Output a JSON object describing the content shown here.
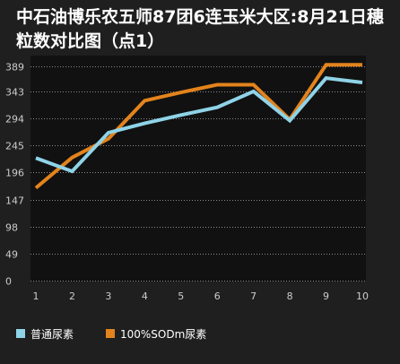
{
  "title": "中石油博乐农五师87团6连玉米大区:8月21日穗粒数对比图（点1）",
  "colors": {
    "background": "#1f1f1f",
    "plot_background": "#111111",
    "grid": "#8a8a8a",
    "axis_text": "#cccccc",
    "series_1": "#8fd3e8",
    "series_2": "#e3831c"
  },
  "chart_data": {
    "type": "line",
    "x": [
      1,
      2,
      3,
      4,
      5,
      6,
      7,
      8,
      9,
      10
    ],
    "series": [
      {
        "name": "普通尿素",
        "values": [
          222,
          198,
          268,
          285,
          300,
          314,
          343,
          290,
          367,
          359
        ]
      },
      {
        "name": "100%SODm尿素",
        "values": [
          168,
          223,
          257,
          326,
          341,
          355,
          355,
          292,
          391,
          391
        ]
      }
    ],
    "yticks": [
      0,
      49,
      98,
      147,
      196,
      245,
      294,
      343,
      389
    ],
    "ylim": [
      0,
      398
    ],
    "xlim": [
      1,
      10
    ],
    "grid": true,
    "legend_position": "bottom-left"
  }
}
